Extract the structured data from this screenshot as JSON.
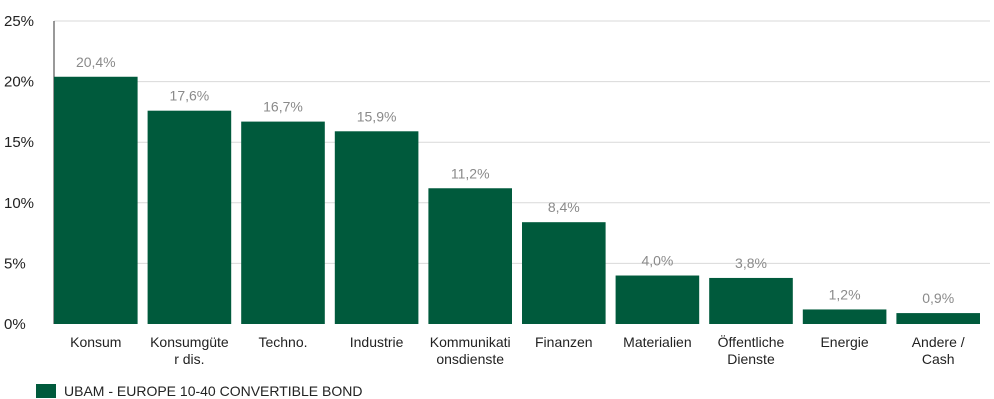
{
  "chart_data": {
    "type": "bar",
    "categories": [
      [
        "Konsum"
      ],
      [
        "Konsumgüte",
        "r dis."
      ],
      [
        "Techno."
      ],
      [
        "Industrie"
      ],
      [
        "Kommunikati",
        "onsdienste"
      ],
      [
        "Finanzen"
      ],
      [
        "Materialien"
      ],
      [
        "Öffentliche",
        "Dienste"
      ],
      [
        "Energie"
      ],
      [
        "Andere /",
        "Cash"
      ]
    ],
    "series": [
      {
        "name": "UBAM - EUROPE 10-40 CONVERTIBLE BOND",
        "values": [
          20.4,
          17.6,
          16.7,
          15.9,
          11.2,
          8.4,
          4.0,
          3.8,
          1.2,
          0.9
        ],
        "labels": [
          "20,4%",
          "17,6%",
          "16,7%",
          "15,9%",
          "11,2%",
          "8,4%",
          "4,0%",
          "3,8%",
          "1,2%",
          "0,9%"
        ]
      }
    ],
    "ylim": [
      0,
      25
    ],
    "yticks": [
      {
        "value": 0,
        "label": "0%"
      },
      {
        "value": 5,
        "label": "5%"
      },
      {
        "value": 10,
        "label": "10%"
      },
      {
        "value": 15,
        "label": "15%"
      },
      {
        "value": 20,
        "label": "20%"
      },
      {
        "value": 25,
        "label": "25%"
      }
    ],
    "grid": true,
    "legend_position": "bottom-left",
    "colors": {
      "bar": "#005a3c",
      "grid": "#d9d9d9",
      "axis": "#333333"
    }
  }
}
